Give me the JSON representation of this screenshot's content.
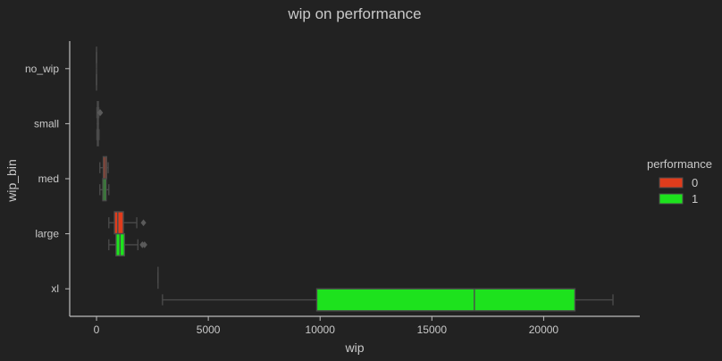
{
  "chart_data": {
    "type": "boxplot",
    "orientation": "horizontal",
    "title": "wip on performance",
    "xlabel": "wip",
    "ylabel": "wip_bin",
    "xlim": [
      -1200,
      24300
    ],
    "xticks": [
      0,
      5000,
      10000,
      15000,
      20000
    ],
    "xtick_labels": [
      "0",
      "5000",
      "10000",
      "15000",
      "20000"
    ],
    "categories": [
      "no_wip",
      "small",
      "med",
      "large",
      "xl"
    ],
    "grid": false,
    "legend": {
      "title": "performance",
      "placement": "right"
    },
    "series": [
      {
        "name": "0",
        "color": "#e03c1c",
        "boxes": [
          {
            "category": "no_wip",
            "min": 0,
            "q1": 0,
            "median": 0,
            "q3": 0,
            "max": 0,
            "outliers": []
          },
          {
            "category": "small",
            "min": 20,
            "q1": 40,
            "median": 60,
            "q3": 80,
            "max": 100,
            "outliers": [
              150,
              170
            ]
          },
          {
            "category": "med",
            "min": 150,
            "q1": 300,
            "median": 380,
            "q3": 450,
            "max": 520,
            "outliers": []
          },
          {
            "category": "large",
            "min": 550,
            "q1": 800,
            "median": 950,
            "q3": 1200,
            "max": 1800,
            "outliers": [
              2100
            ]
          },
          {
            "category": "xl",
            "min": 2750,
            "q1": 2750,
            "median": 2750,
            "q3": 2750,
            "max": 2750,
            "outliers": []
          }
        ]
      },
      {
        "name": "1",
        "color": "#1de21d",
        "boxes": [
          {
            "category": "no_wip",
            "min": 0,
            "q1": 0,
            "median": 0,
            "q3": 0,
            "max": 0,
            "outliers": []
          },
          {
            "category": "small",
            "min": 20,
            "q1": 40,
            "median": 60,
            "q3": 80,
            "max": 110,
            "outliers": []
          },
          {
            "category": "med",
            "min": 150,
            "q1": 280,
            "median": 350,
            "q3": 430,
            "max": 550,
            "outliers": []
          },
          {
            "category": "large",
            "min": 550,
            "q1": 870,
            "median": 1050,
            "q3": 1250,
            "max": 1850,
            "outliers": [
              2050,
              2150
            ]
          },
          {
            "category": "xl",
            "min": 2950,
            "q1": 9850,
            "median": 16900,
            "q3": 21400,
            "max": 23100,
            "outliers": []
          }
        ]
      }
    ]
  }
}
